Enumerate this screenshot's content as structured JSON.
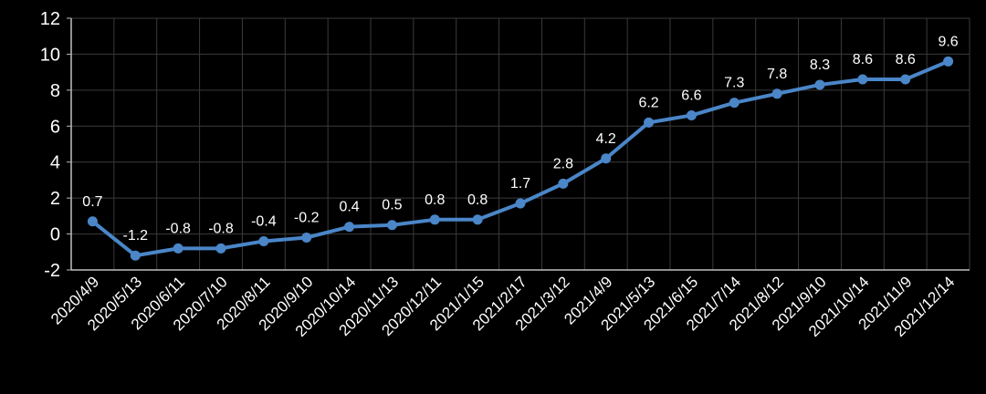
{
  "chart_data": {
    "type": "line",
    "title": "",
    "xlabel": "",
    "ylabel": "",
    "ylim": [
      -2,
      12
    ],
    "yticks": [
      "-2",
      "0",
      "2",
      "4",
      "6",
      "8",
      "10",
      "12"
    ],
    "grid": true,
    "categories": [
      "2020/4/9",
      "2020/5/13",
      "2020/6/11",
      "2020/7/10",
      "2020/8/11",
      "2020/9/10",
      "2020/10/14",
      "2020/11/13",
      "2020/12/11",
      "2021/1/15",
      "2021/2/17",
      "2021/3/12",
      "2021/4/9",
      "2021/5/13",
      "2021/6/15",
      "2021/7/14",
      "2021/8/12",
      "2021/9/10",
      "2021/10/14",
      "2021/11/9",
      "2021/12/14"
    ],
    "values": [
      0.7,
      -1.2,
      -0.8,
      -0.8,
      -0.4,
      -0.2,
      0.4,
      0.5,
      0.8,
      0.8,
      1.7,
      2.8,
      4.2,
      6.2,
      6.6,
      7.3,
      7.8,
      8.3,
      8.6,
      8.6,
      9.6
    ],
    "data_labels": [
      "0.7",
      "-1.2",
      "-0.8",
      "-0.8",
      "-0.4",
      "-0.2",
      "0.4",
      "0.5",
      "0.8",
      "0.8",
      "1.7",
      "2.8",
      "4.2",
      "6.2",
      "6.6",
      "7.3",
      "7.8",
      "8.3",
      "8.6",
      "8.6",
      "9.6"
    ],
    "colors": {
      "line": "#4a86c8",
      "background": "#000000",
      "grid": "#3a3a3a",
      "axis": "#bfbfbf",
      "text": "#ffffff"
    }
  }
}
